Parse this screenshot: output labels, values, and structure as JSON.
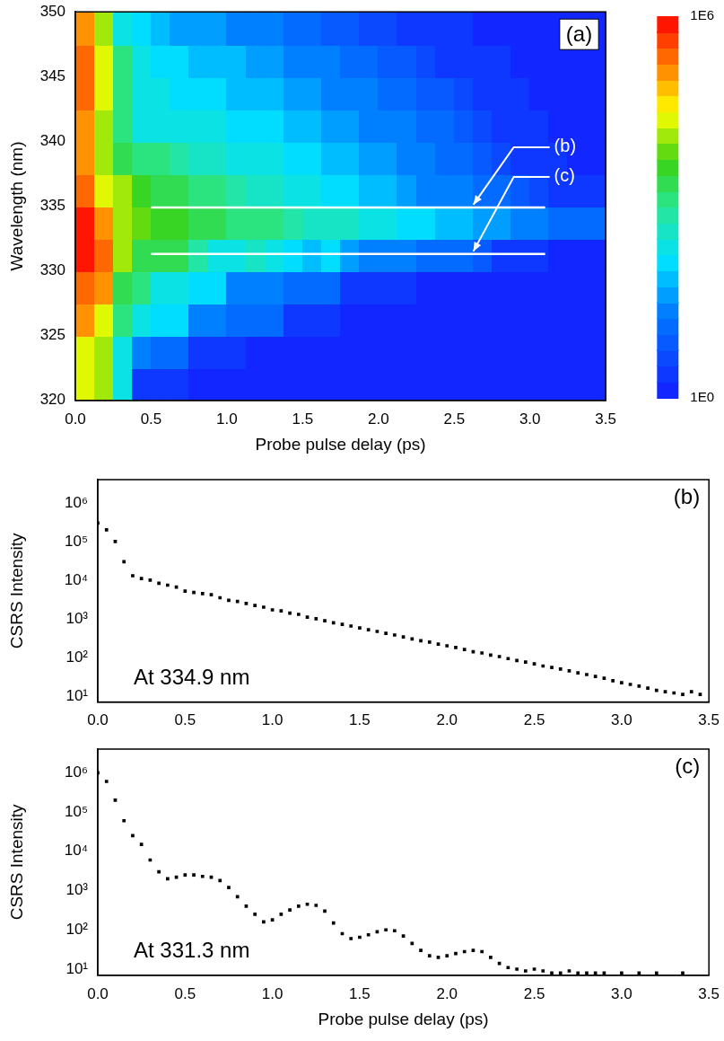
{
  "chart_data": [
    {
      "type": "heatmap",
      "panel": "(a)",
      "x_label": "Probe pulse delay (ps)",
      "y_label": "Wavelength (nm)",
      "xlim": [
        0,
        3.5
      ],
      "xticks": [
        {
          "value": 0,
          "label": "0.0"
        },
        {
          "value": 0.5,
          "label": "0.5"
        },
        {
          "value": 1,
          "label": "1.0"
        },
        {
          "value": 1.5,
          "label": "1.5"
        },
        {
          "value": 2,
          "label": "2.0"
        },
        {
          "value": 2.5,
          "label": "2.5"
        },
        {
          "value": 3,
          "label": "3.0"
        },
        {
          "value": 3.5,
          "label": "3.5"
        }
      ],
      "ylim": [
        320,
        350
      ],
      "yticks": [
        320,
        325,
        330,
        335,
        340,
        345,
        350
      ],
      "grid": false,
      "cells": {
        "x": [
          0.0625,
          0.1875,
          0.3125,
          0.4375,
          0.5625,
          0.6875,
          0.8125,
          0.9375,
          1.0625,
          1.1875,
          1.3125,
          1.4375,
          1.5625,
          1.6875,
          1.8125,
          1.9375,
          2.0625,
          2.1875,
          2.3125,
          2.4375,
          2.5625,
          2.6875,
          2.8125,
          2.9375,
          3.0625,
          3.1875,
          3.3125,
          3.4375
        ],
        "y": [
          321.25,
          323.75,
          326.25,
          328.75,
          331.25,
          333.75,
          336.25,
          338.75,
          341.25,
          343.75,
          346.25,
          348.75
        ],
        "z": [
          [
            30000,
            10000,
            300,
            3,
            3,
            3,
            1,
            1,
            1,
            1,
            1,
            1,
            1,
            1,
            1,
            1,
            1,
            1,
            1,
            1,
            1,
            1,
            1,
            1,
            1,
            1,
            1,
            1
          ],
          [
            30000,
            10000,
            300,
            30,
            10,
            10,
            3,
            3,
            3,
            1,
            1,
            1,
            1,
            1,
            1,
            1,
            1,
            1,
            1,
            1,
            1,
            1,
            1,
            1,
            1,
            1,
            1,
            1
          ],
          [
            100000,
            30000,
            1000,
            300,
            100,
            100,
            30,
            30,
            10,
            10,
            10,
            3,
            3,
            3,
            1,
            1,
            1,
            1,
            1,
            1,
            1,
            1,
            1,
            1,
            1,
            1,
            1,
            1
          ],
          [
            300000,
            100000,
            3000,
            1000,
            300,
            300,
            100,
            100,
            30,
            30,
            30,
            10,
            10,
            10,
            3,
            3,
            3,
            3,
            1,
            1,
            1,
            1,
            1,
            1,
            1,
            1,
            1,
            1
          ],
          [
            1000000,
            300000,
            10000,
            2000,
            2500,
            2000,
            700,
            200,
            300,
            400,
            300,
            100,
            80,
            100,
            50,
            20,
            25,
            30,
            15,
            10,
            10,
            8,
            3,
            3,
            3,
            1,
            1,
            1
          ],
          [
            1000000,
            100000,
            10000,
            8000,
            5000,
            4000,
            3000,
            2500,
            1700,
            1300,
            1000,
            700,
            550,
            420,
            330,
            260,
            200,
            150,
            115,
            90,
            70,
            55,
            40,
            30,
            22,
            17,
            13,
            10
          ],
          [
            300000,
            30000,
            10000,
            5000,
            3000,
            2000,
            1500,
            1000,
            700,
            500,
            400,
            300,
            200,
            150,
            100,
            80,
            60,
            45,
            30,
            25,
            20,
            15,
            10,
            8,
            5,
            3,
            3,
            3
          ],
          [
            100000,
            10000,
            3000,
            1000,
            1000,
            700,
            500,
            400,
            300,
            250,
            200,
            150,
            100,
            80,
            60,
            50,
            40,
            30,
            20,
            15,
            10,
            8,
            5,
            3,
            3,
            2,
            1,
            1
          ],
          [
            100000,
            10000,
            1000,
            300,
            300,
            300,
            200,
            200,
            150,
            120,
            100,
            80,
            60,
            50,
            40,
            30,
            25,
            20,
            15,
            10,
            8,
            5,
            3,
            3,
            2,
            1,
            1,
            1
          ],
          [
            300000,
            30000,
            1000,
            300,
            200,
            150,
            120,
            100,
            80,
            70,
            60,
            50,
            40,
            30,
            25,
            20,
            15,
            10,
            8,
            6,
            5,
            3,
            3,
            2,
            1,
            1,
            1,
            1
          ],
          [
            300000,
            30000,
            1000,
            200,
            100,
            100,
            80,
            70,
            60,
            50,
            40,
            30,
            25,
            20,
            15,
            10,
            8,
            6,
            5,
            3,
            3,
            2,
            2,
            1,
            1,
            1,
            1,
            1
          ],
          [
            100000,
            10000,
            300,
            100,
            60,
            50,
            40,
            35,
            30,
            25,
            20,
            15,
            10,
            8,
            6,
            5,
            4,
            3,
            3,
            2,
            2,
            1,
            1,
            1,
            1,
            1,
            1,
            1
          ]
        ]
      },
      "colorbar": {
        "range": [
          1,
          1000000
        ],
        "log": true,
        "ticks": [
          {
            "value": 1000000,
            "label": "1E6"
          },
          {
            "value": 1,
            "label": "1E0"
          }
        ]
      },
      "annotations": [
        {
          "text": "(b)",
          "y": 334.9,
          "x_range": [
            0.5,
            3.1
          ],
          "color": "#ffffff"
        },
        {
          "text": "(c)",
          "y": 331.3,
          "x_range": [
            0.5,
            3.1
          ],
          "color": "#ffffff"
        }
      ]
    },
    {
      "type": "scatter",
      "panel": "(b)",
      "note": "At 334.9 nm",
      "y_label": "CSRS Intensity",
      "log": "y",
      "grid": false,
      "marker": "square",
      "color": "#000000",
      "xlim": [
        0,
        3.5
      ],
      "xticks": [
        {
          "value": 0,
          "label": "0.0"
        },
        {
          "value": 0.5,
          "label": "0.5"
        },
        {
          "value": 1,
          "label": "1.0"
        },
        {
          "value": 1.5,
          "label": "1.5"
        },
        {
          "value": 2,
          "label": "2.0"
        },
        {
          "value": 2.5,
          "label": "2.5"
        },
        {
          "value": 3,
          "label": "3.0"
        },
        {
          "value": 3.5,
          "label": "3.5"
        }
      ],
      "ylim": [
        7,
        4000000
      ],
      "yticks": [
        {
          "value": 10,
          "label": "10¹"
        },
        {
          "value": 100,
          "label": "10²"
        },
        {
          "value": 1000,
          "label": "10³"
        },
        {
          "value": 10000,
          "label": "10⁴"
        },
        {
          "value": 100000,
          "label": "10⁵"
        },
        {
          "value": 1000000,
          "label": "10⁶"
        }
      ],
      "x": [
        0,
        0.05,
        0.1,
        0.15,
        0.2,
        0.25,
        0.3,
        0.35,
        0.4,
        0.45,
        0.5,
        0.55,
        0.6,
        0.65,
        0.7,
        0.75,
        0.8,
        0.85,
        0.9,
        0.95,
        1,
        1.05,
        1.1,
        1.15,
        1.2,
        1.25,
        1.3,
        1.35,
        1.4,
        1.45,
        1.5,
        1.55,
        1.6,
        1.65,
        1.7,
        1.75,
        1.8,
        1.85,
        1.9,
        1.95,
        2,
        2.05,
        2.1,
        2.15,
        2.2,
        2.25,
        2.3,
        2.35,
        2.4,
        2.45,
        2.5,
        2.55,
        2.6,
        2.65,
        2.7,
        2.75,
        2.8,
        2.85,
        2.9,
        2.95,
        3,
        3.05,
        3.1,
        3.15,
        3.2,
        3.25,
        3.3,
        3.35,
        3.4,
        3.45
      ],
      "values": [
        300000,
        200000,
        100000,
        30000,
        13000,
        11000,
        10000,
        8300,
        7400,
        6600,
        5200,
        4800,
        4500,
        4200,
        3500,
        3000,
        2800,
        2500,
        2200,
        2000,
        1700,
        1600,
        1400,
        1300,
        1100,
        1000,
        890,
        790,
        720,
        650,
        580,
        520,
        470,
        420,
        380,
        340,
        300,
        270,
        250,
        220,
        200,
        180,
        160,
        140,
        130,
        115,
        105,
        93,
        83,
        76,
        68,
        60,
        55,
        50,
        45,
        40,
        36,
        32,
        29,
        25,
        22,
        20,
        18,
        16,
        14,
        13,
        12,
        11,
        13,
        11
      ]
    },
    {
      "type": "scatter",
      "panel": "(c)",
      "note": "At 331.3 nm",
      "x_label": "Probe pulse delay (ps)",
      "y_label": "CSRS Intensity",
      "log": "y",
      "grid": false,
      "marker": "square",
      "color": "#000000",
      "xlim": [
        0,
        3.5
      ],
      "xticks": [
        {
          "value": 0,
          "label": "0.0"
        },
        {
          "value": 0.5,
          "label": "0.5"
        },
        {
          "value": 1,
          "label": "1.0"
        },
        {
          "value": 1.5,
          "label": "1.5"
        },
        {
          "value": 2,
          "label": "2.0"
        },
        {
          "value": 2.5,
          "label": "2.5"
        },
        {
          "value": 3,
          "label": "3.0"
        },
        {
          "value": 3.5,
          "label": "3.5"
        }
      ],
      "ylim": [
        7,
        4000000
      ],
      "yticks": [
        {
          "value": 10,
          "label": "10¹"
        },
        {
          "value": 100,
          "label": "10²"
        },
        {
          "value": 1000,
          "label": "10³"
        },
        {
          "value": 10000,
          "label": "10⁴"
        },
        {
          "value": 100000,
          "label": "10⁵"
        },
        {
          "value": 1000000,
          "label": "10⁶"
        }
      ],
      "x": [
        0,
        0.05,
        0.1,
        0.15,
        0.2,
        0.25,
        0.3,
        0.35,
        0.4,
        0.45,
        0.5,
        0.55,
        0.6,
        0.65,
        0.7,
        0.75,
        0.8,
        0.85,
        0.9,
        0.95,
        1,
        1.05,
        1.1,
        1.15,
        1.2,
        1.25,
        1.3,
        1.35,
        1.4,
        1.45,
        1.5,
        1.55,
        1.6,
        1.65,
        1.7,
        1.75,
        1.8,
        1.85,
        1.9,
        1.95,
        2,
        2.05,
        2.1,
        2.15,
        2.2,
        2.25,
        2.3,
        2.35,
        2.4,
        2.45,
        2.5,
        2.55,
        2.6,
        2.65,
        2.7,
        2.75,
        2.8,
        2.85,
        2.9,
        3,
        3.1,
        3.2,
        3.35
      ],
      "values": [
        1000000,
        600000,
        200000,
        60000,
        25000,
        15000,
        6000,
        3000,
        2000,
        2200,
        2500,
        2500,
        2300,
        2200,
        1800,
        1200,
        700,
        400,
        250,
        160,
        180,
        250,
        320,
        400,
        450,
        420,
        300,
        150,
        80,
        60,
        65,
        75,
        90,
        100,
        95,
        70,
        45,
        30,
        22,
        20,
        22,
        25,
        28,
        30,
        28,
        20,
        14,
        11,
        10,
        9,
        10,
        9,
        8,
        8,
        9,
        8,
        8,
        8,
        8,
        8,
        8,
        8,
        8
      ]
    }
  ]
}
